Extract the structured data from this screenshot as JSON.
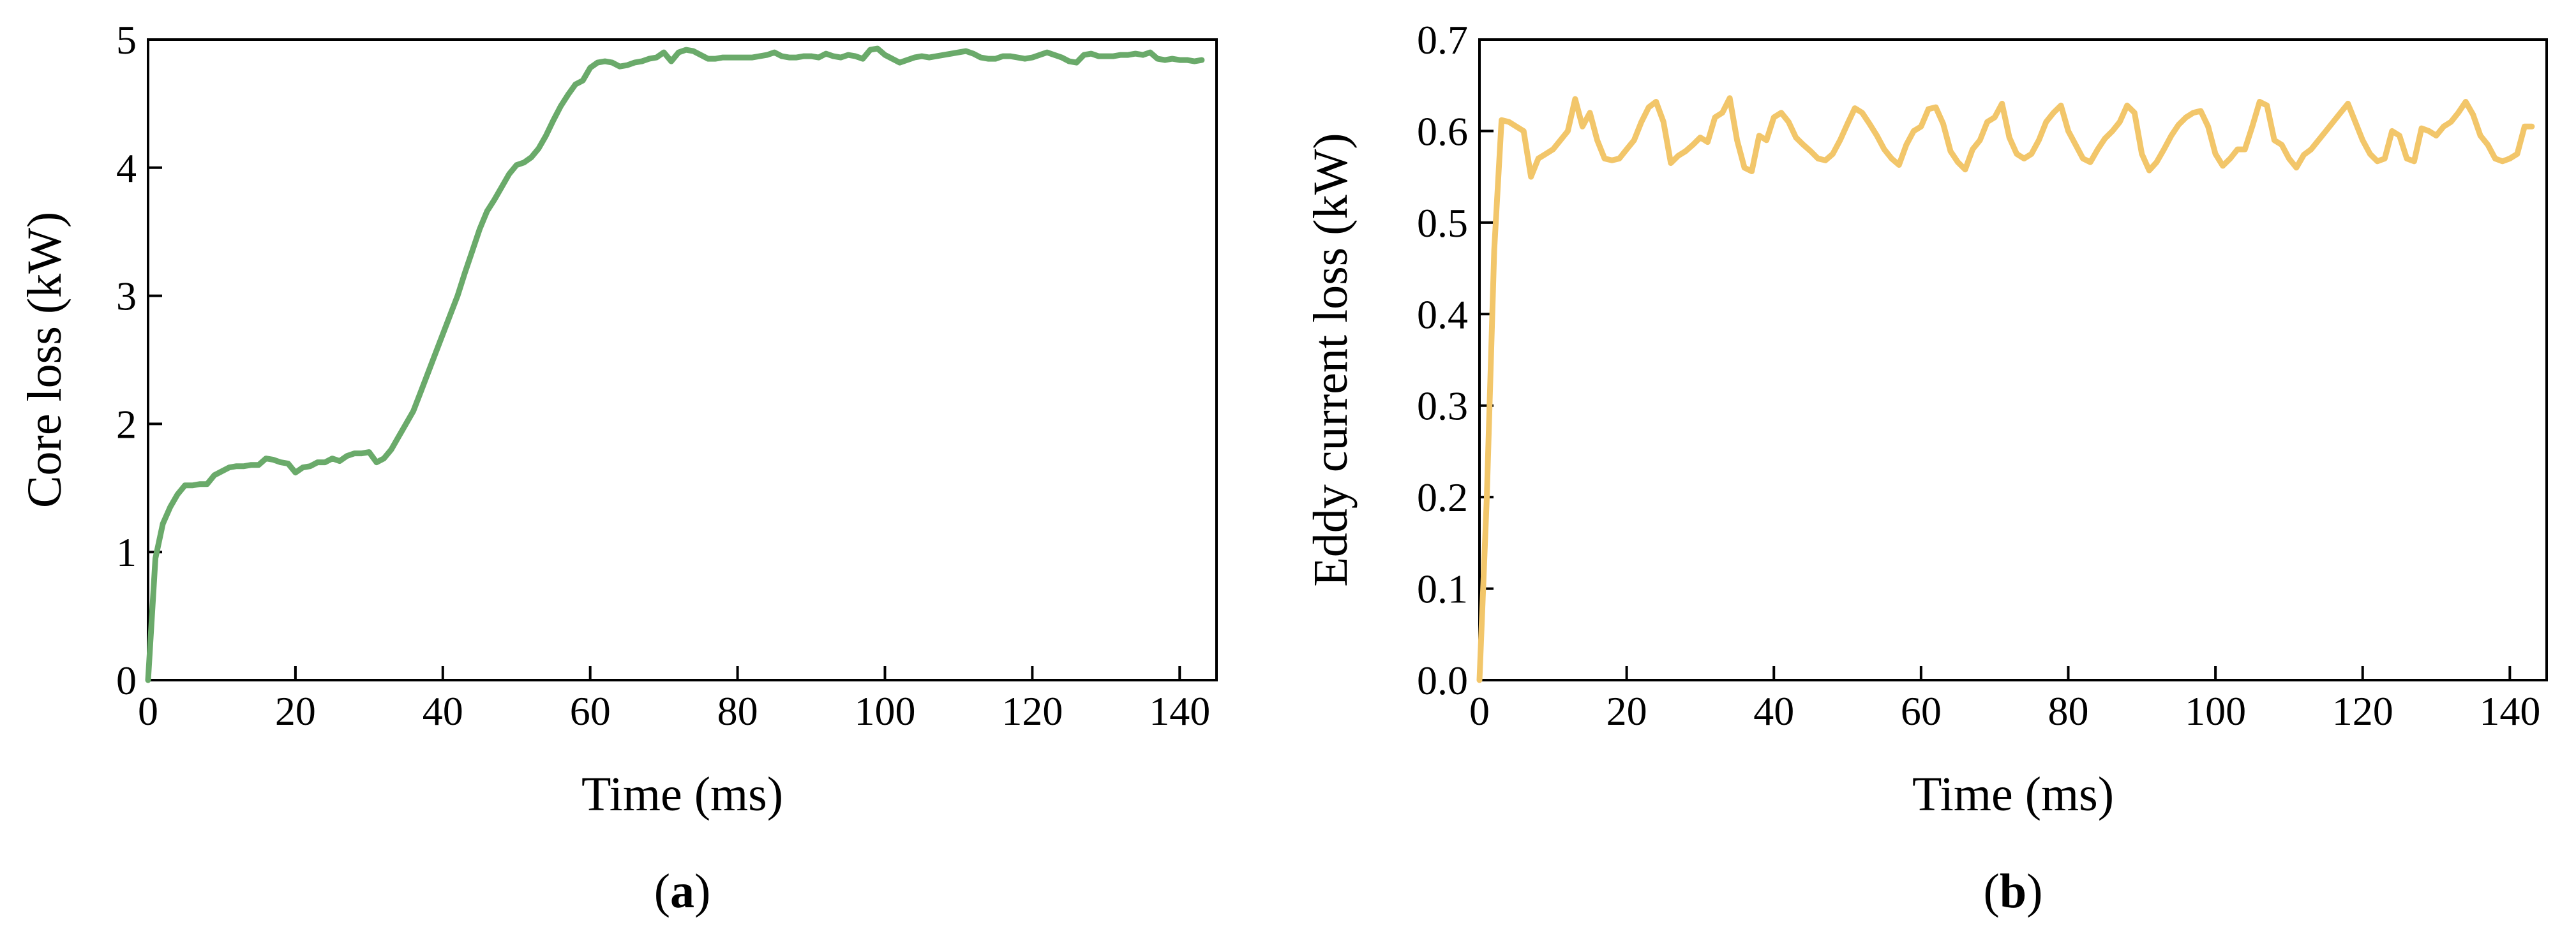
{
  "chart_data": [
    {
      "type": "line",
      "panel_label": "a",
      "xlabel": "Time (ms)",
      "ylabel": "Core loss (kW)",
      "xlim": [
        0,
        145
      ],
      "ylim": [
        0,
        5
      ],
      "xticks": [
        0,
        20,
        40,
        60,
        80,
        100,
        120,
        140
      ],
      "yticks": [
        0,
        1,
        2,
        3,
        4,
        5
      ],
      "color": "#6aaa6a",
      "grid": false,
      "series": [
        {
          "x": [
            0,
            1,
            2,
            3,
            4,
            5,
            6,
            7,
            8,
            9,
            10,
            11,
            12,
            13,
            14,
            15,
            16,
            17,
            18,
            19,
            20,
            21,
            22,
            23,
            24,
            25,
            26,
            27,
            28,
            29,
            30,
            31,
            32,
            33,
            34,
            35,
            36,
            37,
            38,
            39,
            40,
            41,
            42,
            43,
            44,
            45,
            46,
            47,
            48,
            49,
            50,
            51,
            52,
            53,
            54,
            55,
            56,
            57,
            58,
            59,
            60,
            61,
            62,
            63,
            64,
            65,
            66,
            67,
            68,
            69,
            70,
            71,
            72,
            73,
            74,
            75,
            76,
            77,
            78,
            79,
            80,
            81,
            82,
            83,
            84,
            85,
            86,
            87,
            88,
            89,
            90,
            91,
            92,
            93,
            94,
            95,
            96,
            97,
            98,
            99,
            100,
            101,
            102,
            103,
            104,
            105,
            106,
            107,
            108,
            109,
            110,
            111,
            112,
            113,
            114,
            115,
            116,
            117,
            118,
            119,
            120,
            121,
            122,
            123,
            124,
            125,
            126,
            127,
            128,
            129,
            130,
            131,
            132,
            133,
            134,
            135,
            136,
            137,
            138,
            139,
            140,
            141,
            142,
            143
          ],
          "y": [
            0.0,
            0.95,
            1.22,
            1.35,
            1.45,
            1.52,
            1.52,
            1.53,
            1.53,
            1.6,
            1.63,
            1.66,
            1.67,
            1.67,
            1.68,
            1.68,
            1.73,
            1.72,
            1.7,
            1.69,
            1.62,
            1.66,
            1.67,
            1.7,
            1.7,
            1.73,
            1.71,
            1.75,
            1.77,
            1.77,
            1.78,
            1.7,
            1.73,
            1.8,
            1.9,
            2.0,
            2.1,
            2.25,
            2.4,
            2.55,
            2.7,
            2.85,
            3.0,
            3.18,
            3.35,
            3.52,
            3.66,
            3.75,
            3.85,
            3.95,
            4.02,
            4.04,
            4.08,
            4.15,
            4.25,
            4.37,
            4.48,
            4.57,
            4.65,
            4.68,
            4.78,
            4.82,
            4.83,
            4.82,
            4.79,
            4.8,
            4.82,
            4.83,
            4.85,
            4.86,
            4.9,
            4.83,
            4.9,
            4.92,
            4.91,
            4.88,
            4.85,
            4.85,
            4.86,
            4.86,
            4.86,
            4.86,
            4.86,
            4.87,
            4.88,
            4.9,
            4.87,
            4.86,
            4.86,
            4.87,
            4.87,
            4.86,
            4.89,
            4.87,
            4.86,
            4.88,
            4.87,
            4.85,
            4.92,
            4.93,
            4.88,
            4.85,
            4.82,
            4.84,
            4.86,
            4.87,
            4.86,
            4.87,
            4.88,
            4.89,
            4.9,
            4.91,
            4.89,
            4.86,
            4.85,
            4.85,
            4.87,
            4.87,
            4.86,
            4.85,
            4.86,
            4.88,
            4.9,
            4.88,
            4.86,
            4.83,
            4.82,
            4.88,
            4.89,
            4.87,
            4.87,
            4.87,
            4.88,
            4.88,
            4.89,
            4.88,
            4.9,
            4.85,
            4.84,
            4.85,
            4.84,
            4.84,
            4.83,
            4.84
          ]
        }
      ]
    },
    {
      "type": "line",
      "panel_label": "b",
      "xlabel": "Time (ms)",
      "ylabel": "Eddy current loss (kW)",
      "xlim": [
        0,
        145
      ],
      "ylim": [
        0,
        0.7
      ],
      "xticks": [
        0,
        20,
        40,
        60,
        80,
        100,
        120,
        140
      ],
      "yticks": [
        "0.0",
        "0.1",
        "0.2",
        "0.3",
        "0.4",
        "0.5",
        "0.6",
        "0.7"
      ],
      "color": "#f2c66a",
      "grid": false,
      "series": [
        {
          "x": [
            0,
            1,
            2,
            3,
            4,
            5,
            6,
            7,
            8,
            9,
            10,
            11,
            12,
            13,
            14,
            15,
            16,
            17,
            18,
            19,
            20,
            21,
            22,
            23,
            24,
            25,
            26,
            27,
            28,
            29,
            30,
            31,
            32,
            33,
            34,
            35,
            36,
            37,
            38,
            39,
            40,
            41,
            42,
            43,
            44,
            45,
            46,
            47,
            48,
            49,
            50,
            51,
            52,
            53,
            54,
            55,
            56,
            57,
            58,
            59,
            60,
            61,
            62,
            63,
            64,
            65,
            66,
            67,
            68,
            69,
            70,
            71,
            72,
            73,
            74,
            75,
            76,
            77,
            78,
            79,
            80,
            81,
            82,
            83,
            84,
            85,
            86,
            87,
            88,
            89,
            90,
            91,
            92,
            93,
            94,
            95,
            96,
            97,
            98,
            99,
            100,
            101,
            102,
            103,
            104,
            105,
            106,
            107,
            108,
            109,
            110,
            111,
            112,
            113,
            114,
            115,
            116,
            117,
            118,
            119,
            120,
            121,
            122,
            123,
            124,
            125,
            126,
            127,
            128,
            129,
            130,
            131,
            132,
            133,
            134,
            135,
            136,
            137,
            138,
            139,
            140,
            141,
            142,
            143
          ],
          "y": [
            0.0,
            0.2,
            0.47,
            0.612,
            0.61,
            0.605,
            0.6,
            0.55,
            0.57,
            0.575,
            0.58,
            0.59,
            0.6,
            0.635,
            0.605,
            0.62,
            0.59,
            0.57,
            0.568,
            0.57,
            0.58,
            0.59,
            0.61,
            0.626,
            0.632,
            0.61,
            0.565,
            0.573,
            0.578,
            0.585,
            0.593,
            0.588,
            0.615,
            0.62,
            0.636,
            0.59,
            0.56,
            0.556,
            0.595,
            0.59,
            0.615,
            0.62,
            0.61,
            0.593,
            0.585,
            0.578,
            0.57,
            0.568,
            0.575,
            0.59,
            0.608,
            0.625,
            0.62,
            0.608,
            0.595,
            0.58,
            0.57,
            0.563,
            0.585,
            0.6,
            0.605,
            0.624,
            0.626,
            0.608,
            0.578,
            0.566,
            0.558,
            0.58,
            0.59,
            0.61,
            0.615,
            0.63,
            0.593,
            0.575,
            0.57,
            0.575,
            0.59,
            0.61,
            0.62,
            0.628,
            0.6,
            0.585,
            0.57,
            0.566,
            0.58,
            0.592,
            0.6,
            0.61,
            0.628,
            0.62,
            0.575,
            0.557,
            0.566,
            0.58,
            0.595,
            0.607,
            0.615,
            0.62,
            0.622,
            0.605,
            0.575,
            0.562,
            0.57,
            0.58,
            0.58,
            0.605,
            0.632,
            0.628,
            0.59,
            0.585,
            0.57,
            0.56,
            0.574,
            0.58,
            0.59,
            0.6,
            0.61,
            0.62,
            0.63,
            0.61,
            0.59,
            0.575,
            0.567,
            0.57,
            0.6,
            0.595,
            0.57,
            0.567,
            0.603,
            0.6,
            0.595,
            0.605,
            0.61,
            0.62,
            0.632,
            0.618,
            0.595,
            0.585,
            0.57,
            0.567,
            0.57,
            0.575,
            0.605,
            0.605
          ]
        }
      ]
    }
  ]
}
